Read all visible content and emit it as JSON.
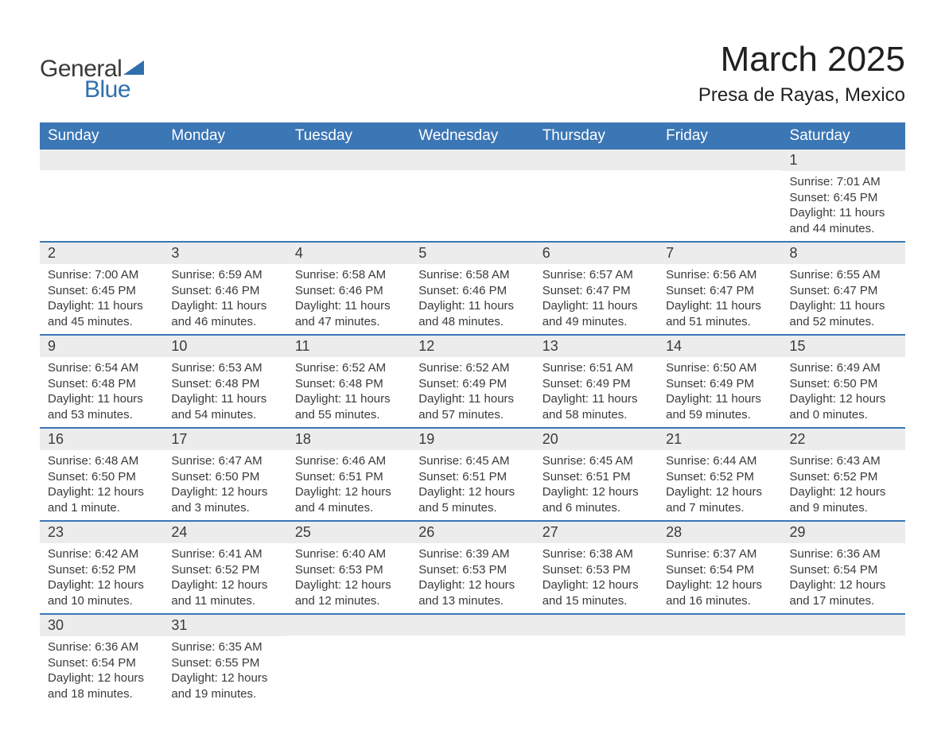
{
  "logo": {
    "text1": "General",
    "text2": "Blue",
    "triangle_color": "#2f6fad"
  },
  "header": {
    "month_title": "March 2025",
    "location": "Presa de Rayas, Mexico"
  },
  "colors": {
    "header_bg": "#3b76b5",
    "header_text": "#ffffff",
    "daynum_bg": "#ececec",
    "row_border": "#3b76b5",
    "text": "#3a3a3a"
  },
  "weekdays": [
    "Sunday",
    "Monday",
    "Tuesday",
    "Wednesday",
    "Thursday",
    "Friday",
    "Saturday"
  ],
  "weeks": [
    [
      null,
      null,
      null,
      null,
      null,
      null,
      {
        "n": "1",
        "sunrise": "7:01 AM",
        "sunset": "6:45 PM",
        "daylight": "11 hours and 44 minutes."
      }
    ],
    [
      {
        "n": "2",
        "sunrise": "7:00 AM",
        "sunset": "6:45 PM",
        "daylight": "11 hours and 45 minutes."
      },
      {
        "n": "3",
        "sunrise": "6:59 AM",
        "sunset": "6:46 PM",
        "daylight": "11 hours and 46 minutes."
      },
      {
        "n": "4",
        "sunrise": "6:58 AM",
        "sunset": "6:46 PM",
        "daylight": "11 hours and 47 minutes."
      },
      {
        "n": "5",
        "sunrise": "6:58 AM",
        "sunset": "6:46 PM",
        "daylight": "11 hours and 48 minutes."
      },
      {
        "n": "6",
        "sunrise": "6:57 AM",
        "sunset": "6:47 PM",
        "daylight": "11 hours and 49 minutes."
      },
      {
        "n": "7",
        "sunrise": "6:56 AM",
        "sunset": "6:47 PM",
        "daylight": "11 hours and 51 minutes."
      },
      {
        "n": "8",
        "sunrise": "6:55 AM",
        "sunset": "6:47 PM",
        "daylight": "11 hours and 52 minutes."
      }
    ],
    [
      {
        "n": "9",
        "sunrise": "6:54 AM",
        "sunset": "6:48 PM",
        "daylight": "11 hours and 53 minutes."
      },
      {
        "n": "10",
        "sunrise": "6:53 AM",
        "sunset": "6:48 PM",
        "daylight": "11 hours and 54 minutes."
      },
      {
        "n": "11",
        "sunrise": "6:52 AM",
        "sunset": "6:48 PM",
        "daylight": "11 hours and 55 minutes."
      },
      {
        "n": "12",
        "sunrise": "6:52 AM",
        "sunset": "6:49 PM",
        "daylight": "11 hours and 57 minutes."
      },
      {
        "n": "13",
        "sunrise": "6:51 AM",
        "sunset": "6:49 PM",
        "daylight": "11 hours and 58 minutes."
      },
      {
        "n": "14",
        "sunrise": "6:50 AM",
        "sunset": "6:49 PM",
        "daylight": "11 hours and 59 minutes."
      },
      {
        "n": "15",
        "sunrise": "6:49 AM",
        "sunset": "6:50 PM",
        "daylight": "12 hours and 0 minutes."
      }
    ],
    [
      {
        "n": "16",
        "sunrise": "6:48 AM",
        "sunset": "6:50 PM",
        "daylight": "12 hours and 1 minute."
      },
      {
        "n": "17",
        "sunrise": "6:47 AM",
        "sunset": "6:50 PM",
        "daylight": "12 hours and 3 minutes."
      },
      {
        "n": "18",
        "sunrise": "6:46 AM",
        "sunset": "6:51 PM",
        "daylight": "12 hours and 4 minutes."
      },
      {
        "n": "19",
        "sunrise": "6:45 AM",
        "sunset": "6:51 PM",
        "daylight": "12 hours and 5 minutes."
      },
      {
        "n": "20",
        "sunrise": "6:45 AM",
        "sunset": "6:51 PM",
        "daylight": "12 hours and 6 minutes."
      },
      {
        "n": "21",
        "sunrise": "6:44 AM",
        "sunset": "6:52 PM",
        "daylight": "12 hours and 7 minutes."
      },
      {
        "n": "22",
        "sunrise": "6:43 AM",
        "sunset": "6:52 PM",
        "daylight": "12 hours and 9 minutes."
      }
    ],
    [
      {
        "n": "23",
        "sunrise": "6:42 AM",
        "sunset": "6:52 PM",
        "daylight": "12 hours and 10 minutes."
      },
      {
        "n": "24",
        "sunrise": "6:41 AM",
        "sunset": "6:52 PM",
        "daylight": "12 hours and 11 minutes."
      },
      {
        "n": "25",
        "sunrise": "6:40 AM",
        "sunset": "6:53 PM",
        "daylight": "12 hours and 12 minutes."
      },
      {
        "n": "26",
        "sunrise": "6:39 AM",
        "sunset": "6:53 PM",
        "daylight": "12 hours and 13 minutes."
      },
      {
        "n": "27",
        "sunrise": "6:38 AM",
        "sunset": "6:53 PM",
        "daylight": "12 hours and 15 minutes."
      },
      {
        "n": "28",
        "sunrise": "6:37 AM",
        "sunset": "6:54 PM",
        "daylight": "12 hours and 16 minutes."
      },
      {
        "n": "29",
        "sunrise": "6:36 AM",
        "sunset": "6:54 PM",
        "daylight": "12 hours and 17 minutes."
      }
    ],
    [
      {
        "n": "30",
        "sunrise": "6:36 AM",
        "sunset": "6:54 PM",
        "daylight": "12 hours and 18 minutes."
      },
      {
        "n": "31",
        "sunrise": "6:35 AM",
        "sunset": "6:55 PM",
        "daylight": "12 hours and 19 minutes."
      },
      null,
      null,
      null,
      null,
      null
    ]
  ],
  "labels": {
    "sunrise": "Sunrise: ",
    "sunset": "Sunset: ",
    "daylight": "Daylight: "
  }
}
